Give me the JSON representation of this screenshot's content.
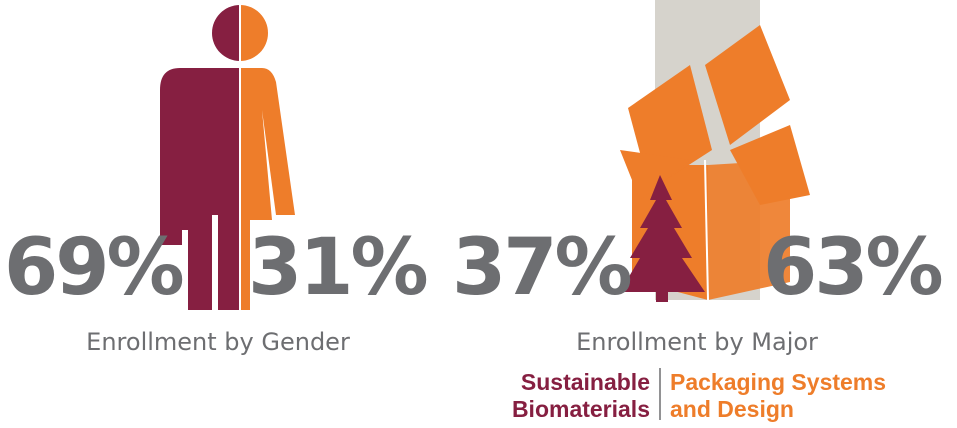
{
  "gender": {
    "left": "69%",
    "right": "31%",
    "caption": "Enrollment by Gender"
  },
  "major": {
    "left": "37%",
    "right": "63%",
    "caption": "Enrollment by Major",
    "legend": [
      {
        "lines": [
          "Sustainable",
          "Biomaterials"
        ],
        "color": "#861f41"
      },
      {
        "lines": [
          "Packaging Systems",
          "and Design"
        ],
        "color": "#ee7d2a"
      }
    ]
  }
}
